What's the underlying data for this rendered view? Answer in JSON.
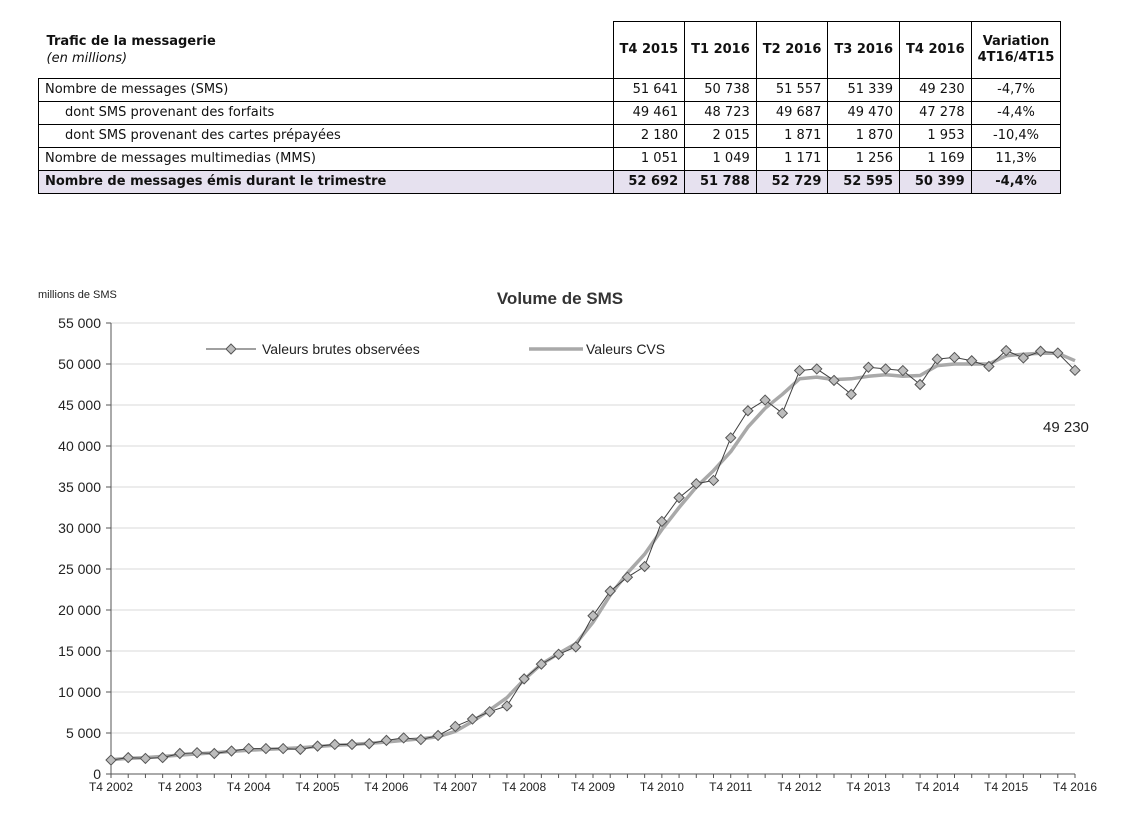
{
  "table": {
    "title": "Trafic de la messagerie",
    "subtitle": "(en millions)",
    "columns": [
      "T4 2015",
      "T1 2016",
      "T2 2016",
      "T3 2016",
      "T4 2016"
    ],
    "variation_header_line1": "Variation",
    "variation_header_line2": "4T16/4T15",
    "rows": [
      {
        "label": "Nombre de messages (SMS)",
        "values": [
          "51 641",
          "50 738",
          "51 557",
          "51 339",
          "49 230"
        ],
        "variation": "-4,7%",
        "indent": false,
        "total": false
      },
      {
        "label": "dont SMS provenant des forfaits",
        "values": [
          "49 461",
          "48 723",
          "49 687",
          "49 470",
          "47 278"
        ],
        "variation": "-4,4%",
        "indent": true,
        "total": false
      },
      {
        "label": "dont SMS provenant des cartes prépayées",
        "values": [
          "2 180",
          "2 015",
          "1 871",
          "1 870",
          "1 953"
        ],
        "variation": "-10,4%",
        "indent": true,
        "total": false
      },
      {
        "label": "Nombre de messages multimedias (MMS)",
        "values": [
          "1 051",
          "1 049",
          "1 171",
          "1 256",
          "1 169"
        ],
        "variation": "11,3%",
        "indent": false,
        "total": false
      },
      {
        "label": "Nombre de messages émis durant le trimestre",
        "values": [
          "52 692",
          "51 788",
          "52 729",
          "52 595",
          "50 399"
        ],
        "variation": "-4,4%",
        "indent": false,
        "total": true
      }
    ]
  },
  "chart_data": {
    "type": "line",
    "title": "Volume de SMS",
    "ylabel": "millions de SMS",
    "xlabel": "",
    "ylim": [
      0,
      55000
    ],
    "yticks": [
      0,
      5000,
      10000,
      15000,
      20000,
      25000,
      30000,
      35000,
      40000,
      45000,
      50000,
      55000
    ],
    "ytick_labels": [
      "0",
      "5 000",
      "10 000",
      "15 000",
      "20 000",
      "25 000",
      "30 000",
      "35 000",
      "40 000",
      "45 000",
      "50 000",
      "55 000"
    ],
    "xtick_labels": [
      "T4 2002",
      "T4 2003",
      "T4 2004",
      "T4 2005",
      "T4 2006",
      "T4 2007",
      "T4 2008",
      "T4 2009",
      "T4 2010",
      "T4 2011",
      "T4 2012",
      "T4 2013",
      "T4 2014",
      "T4 2015",
      "T4 2016"
    ],
    "x": [
      "T4 2002",
      "T1 2003",
      "T2 2003",
      "T3 2003",
      "T4 2003",
      "T1 2004",
      "T2 2004",
      "T3 2004",
      "T4 2004",
      "T1 2005",
      "T2 2005",
      "T3 2005",
      "T4 2005",
      "T1 2006",
      "T2 2006",
      "T3 2006",
      "T4 2006",
      "T1 2007",
      "T2 2007",
      "T3 2007",
      "T4 2007",
      "T1 2008",
      "T2 2008",
      "T3 2008",
      "T4 2008",
      "T1 2009",
      "T2 2009",
      "T3 2009",
      "T4 2009",
      "T1 2010",
      "T2 2010",
      "T3 2010",
      "T4 2010",
      "T1 2011",
      "T2 2011",
      "T3 2011",
      "T4 2011",
      "T1 2012",
      "T2 2012",
      "T3 2012",
      "T4 2012",
      "T1 2013",
      "T2 2013",
      "T3 2013",
      "T4 2013",
      "T1 2014",
      "T2 2014",
      "T3 2014",
      "T4 2014",
      "T1 2015",
      "T2 2015",
      "T3 2015",
      "T4 2015",
      "T1 2016",
      "T2 2016",
      "T3 2016",
      "T4 2016"
    ],
    "grid": true,
    "legend_position": "top",
    "series": [
      {
        "name": "Valeurs brutes observées",
        "color": "#404040",
        "marker": "diamond",
        "values": [
          1700,
          2000,
          1900,
          2000,
          2500,
          2600,
          2500,
          2800,
          3100,
          3100,
          3100,
          3000,
          3400,
          3600,
          3600,
          3700,
          4100,
          4400,
          4200,
          4700,
          5800,
          6700,
          7600,
          8300,
          11600,
          13400,
          14600,
          15500,
          19300,
          22300,
          24000,
          25300,
          30800,
          33700,
          35400,
          35800,
          41000,
          44300,
          45600,
          44000,
          49200,
          49400,
          48000,
          46300,
          49600,
          49400,
          49200,
          47500,
          50600,
          50800,
          50400,
          49700,
          51641,
          50738,
          51557,
          51339,
          49230
        ]
      },
      {
        "name": "Valeurs CVS",
        "color": "#a9a9a9",
        "marker": "none",
        "values": [
          1750,
          1900,
          2000,
          2150,
          2300,
          2450,
          2600,
          2750,
          2900,
          3000,
          3100,
          3200,
          3350,
          3500,
          3600,
          3750,
          3900,
          4100,
          4300,
          4550,
          5200,
          6400,
          7800,
          9300,
          11500,
          13400,
          14700,
          15900,
          18500,
          21800,
          24500,
          26800,
          29800,
          32500,
          35000,
          37000,
          39300,
          42300,
          44600,
          46300,
          48200,
          48400,
          48100,
          48200,
          48500,
          48700,
          48500,
          48600,
          49800,
          50000,
          50000,
          50000,
          51000,
          51200,
          51300,
          51300,
          50400
        ]
      }
    ],
    "annotation": "49 230"
  }
}
